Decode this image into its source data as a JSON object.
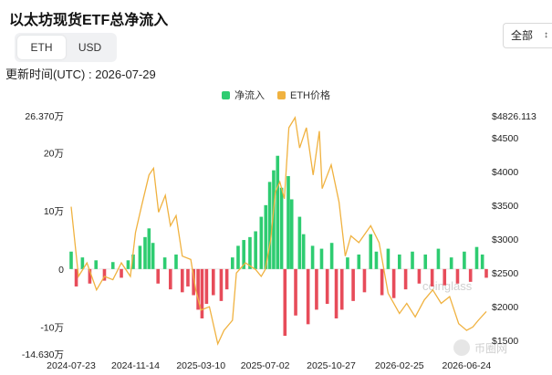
{
  "title": "以太坊现货ETF总净流入",
  "currency_tabs": [
    "ETH",
    "USD"
  ],
  "currency_active": "ETH",
  "range_select": {
    "value": "全部",
    "icon": "chevron-updown-icon"
  },
  "updated_text": "更新时间(UTC) : 2026-07-29",
  "watermark": {
    "text": "coinglass",
    "logo_text": "币圈网"
  },
  "colors": {
    "inflow": "#2ecc71",
    "outflow": "#e74c5a",
    "price": "#f0b240"
  },
  "chart_data": {
    "type": "bar",
    "legend": [
      "净流入",
      "ETH价格"
    ],
    "legend_position": "top-center",
    "grid": false,
    "x_ticks": [
      "2024-07-23",
      "2024-11-14",
      "2025-03-10",
      "2025-07-02",
      "2025-10-27",
      "2026-02-25",
      "2026-06-24"
    ],
    "x_range": [
      "2024-07-23",
      "2026-07-29"
    ],
    "y_left_ticks": [
      {
        "value": 263700,
        "label": "26.370万"
      },
      {
        "value": 200000,
        "label": "20万"
      },
      {
        "value": 100000,
        "label": "10万"
      },
      {
        "value": 0,
        "label": "0"
      },
      {
        "value": -100000,
        "label": "-10万"
      },
      {
        "value": -146300,
        "label": "-14.630万"
      }
    ],
    "y_left_range": [
      -146300,
      263700
    ],
    "y_right_ticks": [
      {
        "value": 4826.113,
        "label": "$4826.113"
      },
      {
        "value": 4500,
        "label": "$4500"
      },
      {
        "value": 4000,
        "label": "$4000"
      },
      {
        "value": 3500,
        "label": "$3500"
      },
      {
        "value": 3000,
        "label": "$3000"
      },
      {
        "value": 2500,
        "label": "$2500"
      },
      {
        "value": 2000,
        "label": "$2000"
      },
      {
        "value": 1500,
        "label": "$1500"
      }
    ],
    "y_right_range": [
      1300,
      4826.113
    ],
    "series": [
      {
        "name": "净流入",
        "type": "bar",
        "points": [
          [
            "2024-07-23",
            30000
          ],
          [
            "2024-08-01",
            -30000
          ],
          [
            "2024-08-12",
            20000
          ],
          [
            "2024-08-25",
            -25000
          ],
          [
            "2024-09-05",
            15000
          ],
          [
            "2024-09-20",
            -20000
          ],
          [
            "2024-10-05",
            12000
          ],
          [
            "2024-10-20",
            -15000
          ],
          [
            "2024-11-01",
            15000
          ],
          [
            "2024-11-10",
            25000
          ],
          [
            "2024-11-22",
            40000
          ],
          [
            "2024-12-01",
            55000
          ],
          [
            "2024-12-08",
            70000
          ],
          [
            "2024-12-15",
            45000
          ],
          [
            "2024-12-24",
            -25000
          ],
          [
            "2025-01-05",
            20000
          ],
          [
            "2025-01-15",
            -35000
          ],
          [
            "2025-01-25",
            25000
          ],
          [
            "2025-02-05",
            -40000
          ],
          [
            "2025-02-15",
            -30000
          ],
          [
            "2025-02-25",
            -45000
          ],
          [
            "2025-03-05",
            -70000
          ],
          [
            "2025-03-12",
            -85000
          ],
          [
            "2025-03-20",
            -60000
          ],
          [
            "2025-04-01",
            -45000
          ],
          [
            "2025-04-15",
            -55000
          ],
          [
            "2025-04-25",
            -35000
          ],
          [
            "2025-05-05",
            20000
          ],
          [
            "2025-05-15",
            40000
          ],
          [
            "2025-05-25",
            50000
          ],
          [
            "2025-06-05",
            55000
          ],
          [
            "2025-06-15",
            65000
          ],
          [
            "2025-06-25",
            90000
          ],
          [
            "2025-07-03",
            110000
          ],
          [
            "2025-07-10",
            150000
          ],
          [
            "2025-07-17",
            170000
          ],
          [
            "2025-07-24",
            195000
          ],
          [
            "2025-07-31",
            140000
          ],
          [
            "2025-08-06",
            -115000
          ],
          [
            "2025-08-12",
            160000
          ],
          [
            "2025-08-18",
            120000
          ],
          [
            "2025-08-25",
            -80000
          ],
          [
            "2025-09-01",
            90000
          ],
          [
            "2025-09-08",
            60000
          ],
          [
            "2025-09-16",
            -95000
          ],
          [
            "2025-09-24",
            40000
          ],
          [
            "2025-10-01",
            -70000
          ],
          [
            "2025-10-10",
            35000
          ],
          [
            "2025-10-20",
            -60000
          ],
          [
            "2025-10-28",
            45000
          ],
          [
            "2025-11-05",
            -85000
          ],
          [
            "2025-11-15",
            -70000
          ],
          [
            "2025-11-25",
            20000
          ],
          [
            "2025-12-05",
            -55000
          ],
          [
            "2025-12-15",
            25000
          ],
          [
            "2025-12-25",
            -40000
          ],
          [
            "2026-01-05",
            60000
          ],
          [
            "2026-01-15",
            30000
          ],
          [
            "2026-01-25",
            -45000
          ],
          [
            "2026-02-05",
            35000
          ],
          [
            "2026-02-15",
            -50000
          ],
          [
            "2026-02-25",
            25000
          ],
          [
            "2026-03-08",
            -35000
          ],
          [
            "2026-03-20",
            30000
          ],
          [
            "2026-04-01",
            -25000
          ],
          [
            "2026-04-12",
            25000
          ],
          [
            "2026-04-24",
            -30000
          ],
          [
            "2026-05-05",
            35000
          ],
          [
            "2026-05-16",
            -28000
          ],
          [
            "2026-05-28",
            20000
          ],
          [
            "2026-06-08",
            -25000
          ],
          [
            "2026-06-20",
            30000
          ],
          [
            "2026-07-01",
            -22000
          ],
          [
            "2026-07-12",
            38000
          ],
          [
            "2026-07-22",
            25000
          ],
          [
            "2026-07-29",
            -15000
          ]
        ]
      },
      {
        "name": "ETH价格",
        "type": "line",
        "points": [
          [
            "2024-07-23",
            3480
          ],
          [
            "2024-08-05",
            2450
          ],
          [
            "2024-08-20",
            2650
          ],
          [
            "2024-09-06",
            2250
          ],
          [
            "2024-09-20",
            2450
          ],
          [
            "2024-10-05",
            2400
          ],
          [
            "2024-10-20",
            2650
          ],
          [
            "2024-11-05",
            2450
          ],
          [
            "2024-11-14",
            3100
          ],
          [
            "2024-11-25",
            3500
          ],
          [
            "2024-12-08",
            3950
          ],
          [
            "2024-12-16",
            4050
          ],
          [
            "2024-12-25",
            3400
          ],
          [
            "2025-01-06",
            3650
          ],
          [
            "2025-01-15",
            3200
          ],
          [
            "2025-01-25",
            3350
          ],
          [
            "2025-02-05",
            2750
          ],
          [
            "2025-02-20",
            2700
          ],
          [
            "2025-03-01",
            2250
          ],
          [
            "2025-03-10",
            1950
          ],
          [
            "2025-03-25",
            2000
          ],
          [
            "2025-04-09",
            1450
          ],
          [
            "2025-04-20",
            1650
          ],
          [
            "2025-05-05",
            1800
          ],
          [
            "2025-05-12",
            2500
          ],
          [
            "2025-05-28",
            2650
          ],
          [
            "2025-06-15",
            2550
          ],
          [
            "2025-06-25",
            2450
          ],
          [
            "2025-07-02",
            2550
          ],
          [
            "2025-07-12",
            3000
          ],
          [
            "2025-07-20",
            3700
          ],
          [
            "2025-07-28",
            3850
          ],
          [
            "2025-08-05",
            3600
          ],
          [
            "2025-08-13",
            4650
          ],
          [
            "2025-08-24",
            4800
          ],
          [
            "2025-09-01",
            4350
          ],
          [
            "2025-09-13",
            4650
          ],
          [
            "2025-09-25",
            3950
          ],
          [
            "2025-10-06",
            4600
          ],
          [
            "2025-10-11",
            3750
          ],
          [
            "2025-10-27",
            4100
          ],
          [
            "2025-11-10",
            3550
          ],
          [
            "2025-11-21",
            2750
          ],
          [
            "2025-12-01",
            3050
          ],
          [
            "2025-12-15",
            2950
          ],
          [
            "2026-01-05",
            3200
          ],
          [
            "2026-01-20",
            2950
          ],
          [
            "2026-02-05",
            2200
          ],
          [
            "2026-02-25",
            1900
          ],
          [
            "2026-03-10",
            2050
          ],
          [
            "2026-03-25",
            1850
          ],
          [
            "2026-04-10",
            2100
          ],
          [
            "2026-04-25",
            2250
          ],
          [
            "2026-05-10",
            2050
          ],
          [
            "2026-05-25",
            2150
          ],
          [
            "2026-06-10",
            1750
          ],
          [
            "2026-06-24",
            1650
          ],
          [
            "2026-07-05",
            1700
          ],
          [
            "2026-07-15",
            1800
          ],
          [
            "2026-07-29",
            1930
          ]
        ]
      }
    ]
  }
}
